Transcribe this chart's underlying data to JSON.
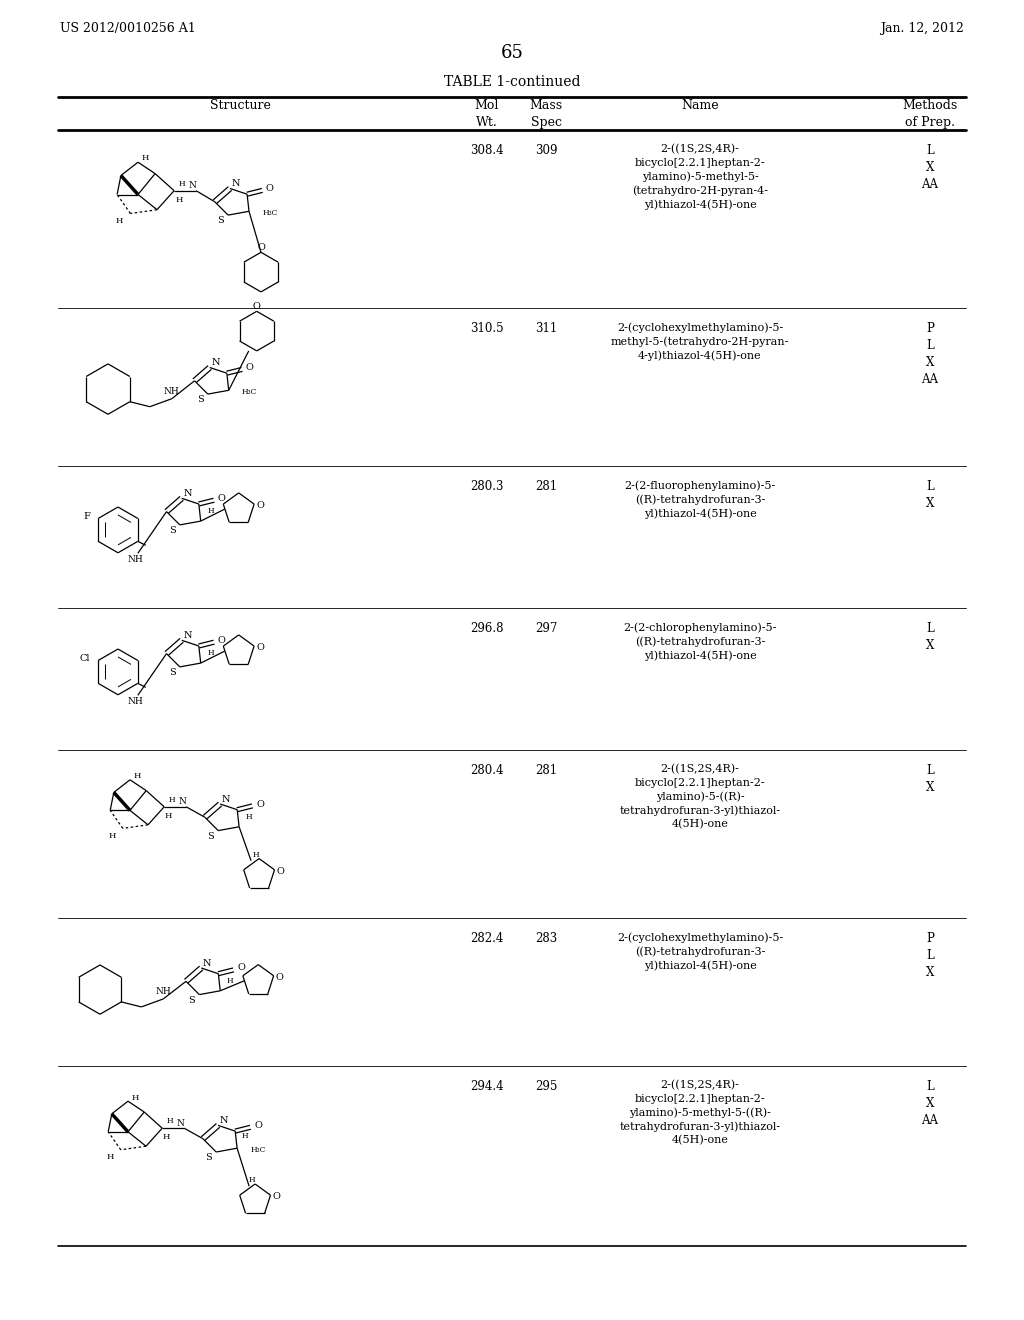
{
  "patent_number": "US 2012/0010256 A1",
  "patent_date": "Jan. 12, 2012",
  "page_number": "65",
  "table_title": "TABLE 1-continued",
  "background_color": "#ffffff",
  "rows": [
    {
      "mol_wt": "308.4",
      "mass_spec": "309",
      "name": "2-((1S,2S,4R)-\nbicyclo[2.2.1]heptan-2-\nylamino)-5-methyl-5-\n(tetrahydro-2H-pyran-4-\nyl)thiazol-4(5H)-one",
      "methods": "L\nX\nAA"
    },
    {
      "mol_wt": "310.5",
      "mass_spec": "311",
      "name": "2-(cyclohexylmethylamino)-5-\nmethyl-5-(tetrahydro-2H-pyran-\n4-yl)thiazol-4(5H)-one",
      "methods": "P\nL\nX\nAA"
    },
    {
      "mol_wt": "280.3",
      "mass_spec": "281",
      "name": "2-(2-fluorophenylamino)-5-\n((R)-tetrahydrofuran-3-\nyl)thiazol-4(5H)-one",
      "methods": "L\nX"
    },
    {
      "mol_wt": "296.8",
      "mass_spec": "297",
      "name": "2-(2-chlorophenylamino)-5-\n((R)-tetrahydrofuran-3-\nyl)thiazol-4(5H)-one",
      "methods": "L\nX"
    },
    {
      "mol_wt": "280.4",
      "mass_spec": "281",
      "name": "2-((1S,2S,4R)-\nbicyclo[2.2.1]heptan-2-\nylamino)-5-((R)-\ntetrahydrofuran-3-yl)thiazol-\n4(5H)-one",
      "methods": "L\nX"
    },
    {
      "mol_wt": "282.4",
      "mass_spec": "283",
      "name": "2-(cyclohexylmethylamino)-5-\n((R)-tetrahydrofuran-3-\nyl)thiazol-4(5H)-one",
      "methods": "P\nL\nX"
    },
    {
      "mol_wt": "294.4",
      "mass_spec": "295",
      "name": "2-((1S,2S,4R)-\nbicyclo[2.2.1]heptan-2-\nylamino)-5-methyl-5-((R)-\ntetrahydrofuran-3-yl)thiazol-\n4(5H)-one",
      "methods": "L\nX\nAA"
    }
  ]
}
